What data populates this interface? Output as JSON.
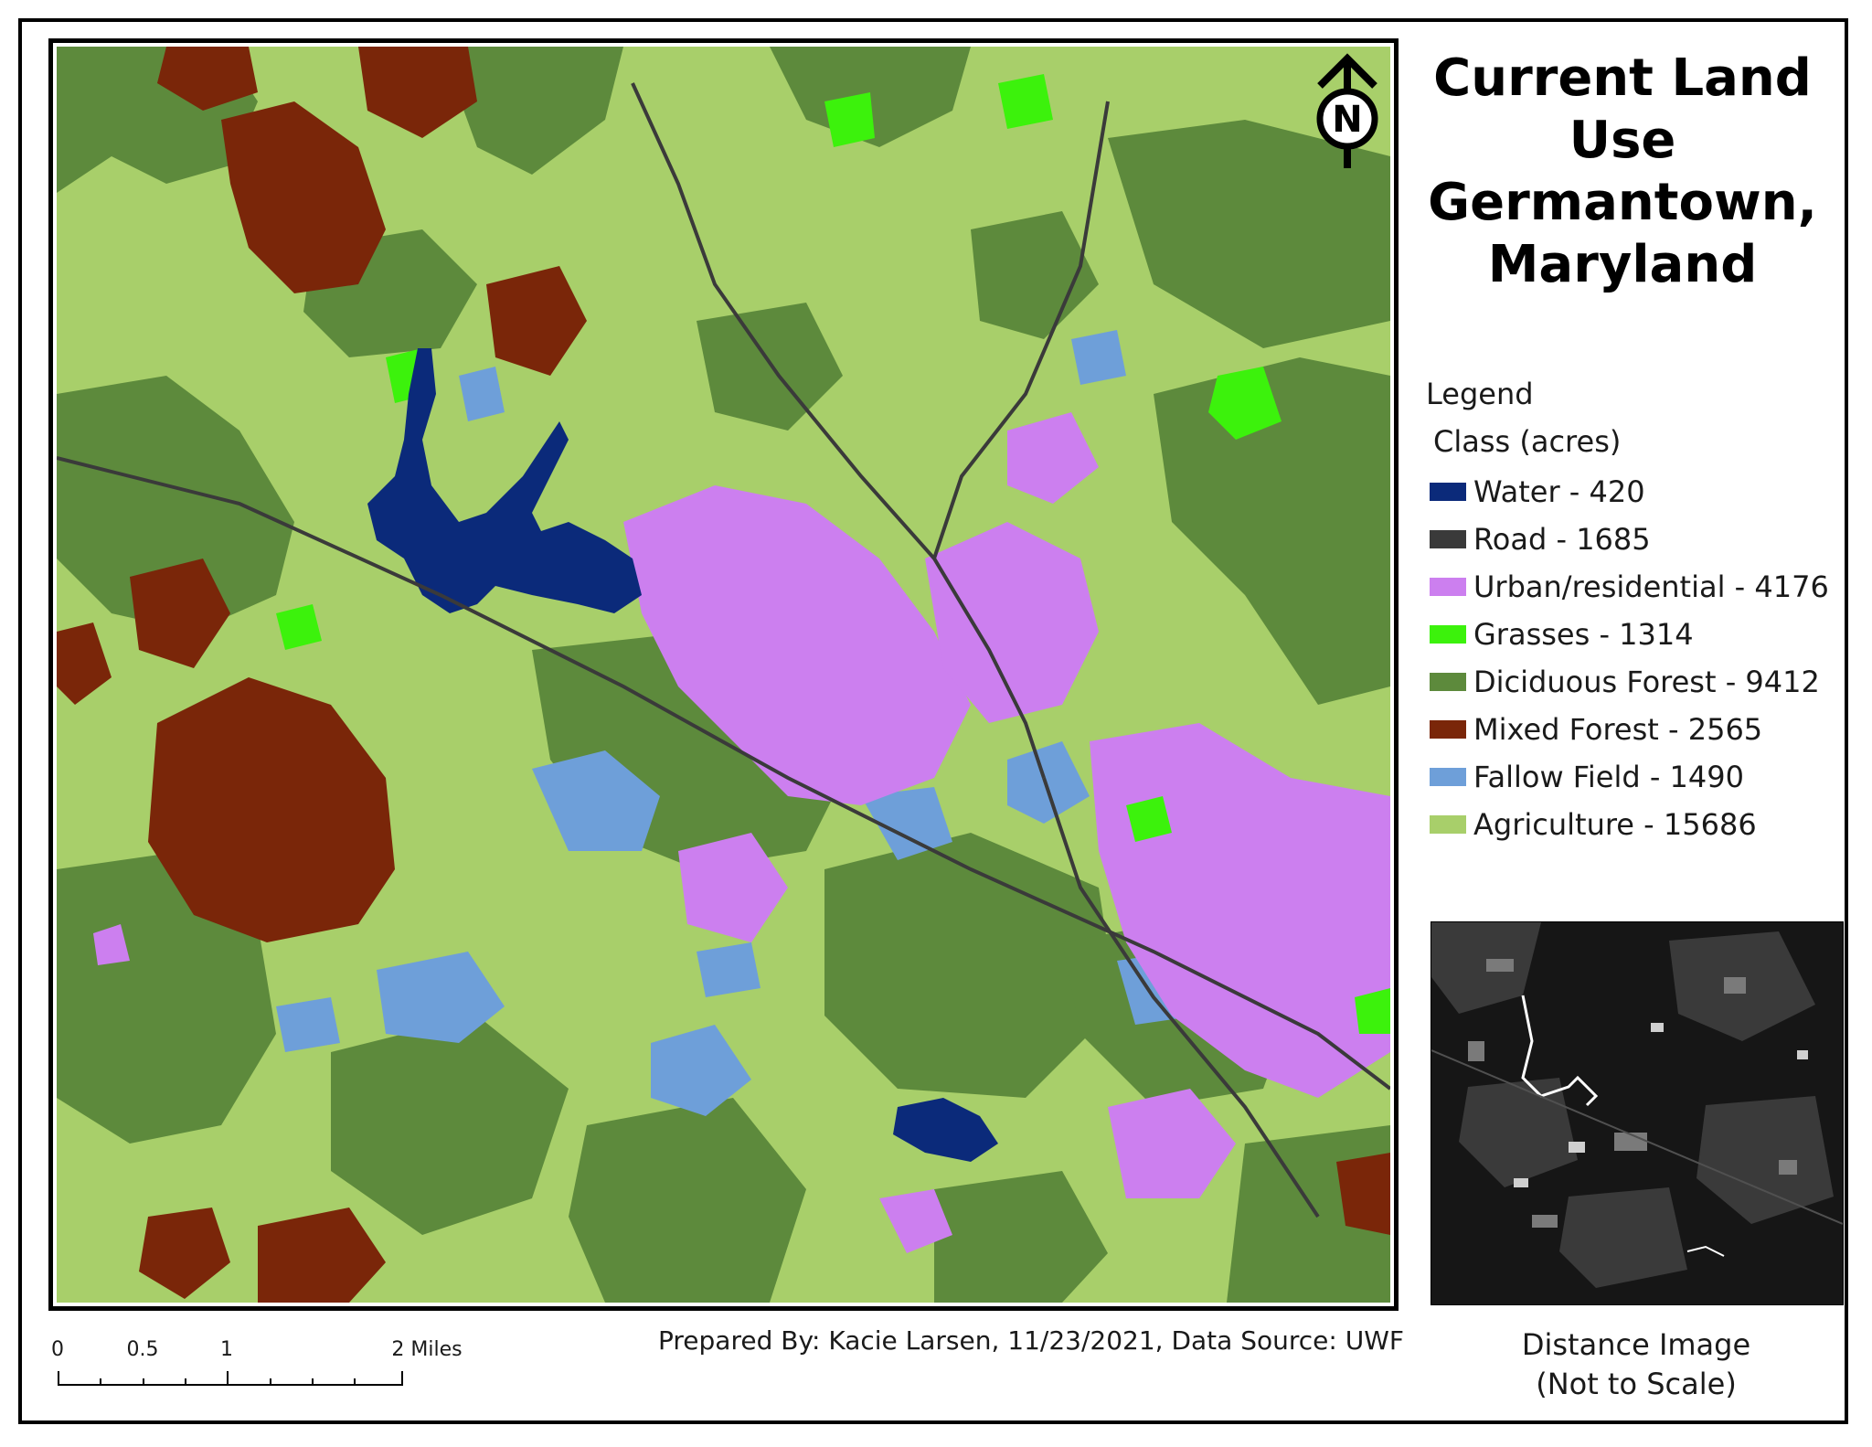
{
  "title_lines": [
    "Current Land",
    "Use",
    "Germantown,",
    "Maryland"
  ],
  "legend": {
    "title": "Legend",
    "subtitle": "Class  (acres)",
    "items": [
      {
        "label": "Water - 420",
        "color": "#0b2a7a"
      },
      {
        "label": "Road - 1685",
        "color": "#3a3a3a"
      },
      {
        "label": "Urban/residential - 4176",
        "color": "#cc7fef"
      },
      {
        "label": "Grasses - 1314",
        "color": "#3cf20c"
      },
      {
        "label": "Diciduous Forest - 9412",
        "color": "#5d8a3c"
      },
      {
        "label": "Mixed Forest - 2565",
        "color": "#7a2609"
      },
      {
        "label": "Fallow Field - 1490",
        "color": "#6e9fd9"
      },
      {
        "label": "Agriculture - 15686",
        "color": "#a8cf6a"
      }
    ]
  },
  "north_arrow": {
    "letter": "N"
  },
  "scale_bar": {
    "labels": [
      "0",
      "0.5",
      "1",
      "2 Miles"
    ]
  },
  "credits": "Prepared By: Kacie Larsen, 11/23/2021, Data Source: UWF",
  "inset": {
    "caption_lines": [
      "Distance Image",
      "(Not to Scale)"
    ]
  },
  "map_colors": {
    "agriculture": "#a8cf6a",
    "deciduous_forest": "#5d8a3c",
    "mixed_forest": "#7a2609",
    "urban": "#cc7fef",
    "water": "#0b2a7a",
    "grasses": "#3cf20c",
    "fallow": "#6e9fd9",
    "road": "#3a3a3a"
  }
}
